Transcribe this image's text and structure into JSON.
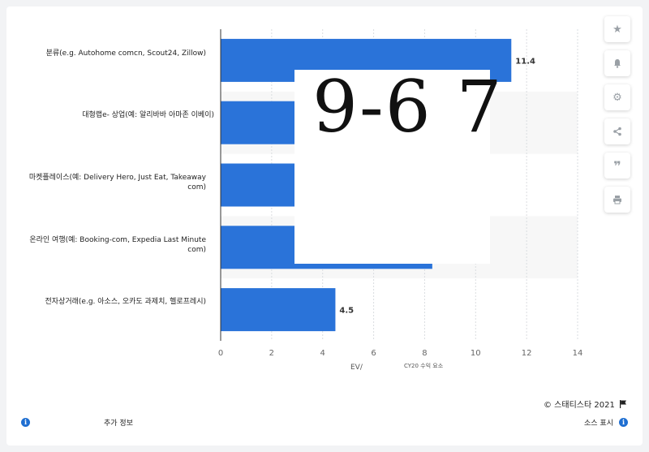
{
  "chart_data": {
    "type": "bar",
    "orientation": "horizontal",
    "categories": [
      "분류(e.g. Autohome comcn, Scout24, Zillow)",
      "대형랩e- 상업(예: 알리바바 아마존 이베이)",
      "마켓플레이스(예: Delivery Hero, Just Eat, Takeaway com)",
      "온라인 여행(예: Booking-com, Expedia Last Minute com)",
      "전자상거래(e.g. 아소스, 오카도 과제치, 헬로프레시)"
    ],
    "values": [
      11.4,
      4.6,
      4.6,
      8.3,
      4.5
    ],
    "data_labels": [
      "11.4",
      "",
      "",
      "",
      "4.5"
    ],
    "xlim": [
      0,
      14
    ],
    "xticks": [
      "0",
      "2",
      "4",
      "6",
      "8",
      "10",
      "12",
      "14"
    ],
    "xlabel_left": "EV/",
    "xlabel_right": "CY20 수익 요소",
    "bar_color": "#2a73d9",
    "grid": true
  },
  "overlay_text": "9-6 7",
  "toolbar": {
    "icons": [
      "star-icon",
      "bell-icon",
      "gear-icon",
      "share-icon",
      "quote-icon",
      "print-icon"
    ]
  },
  "footer": {
    "copyright": "© 스태티스타 2021",
    "more_info": "추가 정보",
    "show_source": "소스 표시"
  }
}
